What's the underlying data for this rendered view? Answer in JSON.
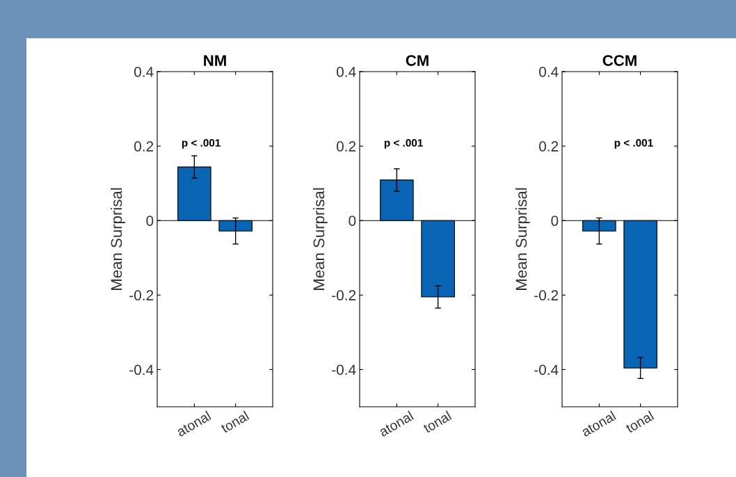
{
  "chart_data": [
    {
      "type": "bar",
      "title": "NM",
      "ylabel": "Mean Surprisal",
      "categories": [
        "atonal",
        "tonal"
      ],
      "values": [
        0.144,
        -0.028
      ],
      "errors": [
        0.03,
        0.035
      ],
      "color": "#0a64b4",
      "ylim": [
        -0.5,
        0.4
      ],
      "yticks": [
        -0.4,
        -0.2,
        0,
        0.2,
        0.4
      ],
      "annotations": [
        "p < .001"
      ],
      "ref_lines": [
        {
          "axis": "y",
          "value": 0,
          "color": "#000000"
        }
      ]
    },
    {
      "type": "bar",
      "title": "CM",
      "ylabel": "Mean Surprisal",
      "categories": [
        "atonal",
        "tonal"
      ],
      "values": [
        0.109,
        -0.205
      ],
      "errors": [
        0.03,
        0.03
      ],
      "color": "#0a64b4",
      "ylim": [
        -0.5,
        0.4
      ],
      "yticks": [
        -0.4,
        -0.2,
        0,
        0.2,
        0.4
      ],
      "annotations": [
        "p < .001"
      ],
      "ref_lines": [
        {
          "axis": "y",
          "value": 0,
          "color": "#000000"
        }
      ]
    },
    {
      "type": "bar",
      "title": "CCM",
      "ylabel": "Mean Surprisal",
      "categories": [
        "atonal",
        "tonal"
      ],
      "values": [
        -0.028,
        -0.396
      ],
      "errors": [
        0.035,
        0.028
      ],
      "color": "#0a64b4",
      "ylim": [
        -0.5,
        0.4
      ],
      "yticks": [
        -0.4,
        -0.2,
        0,
        0.2,
        0.4
      ],
      "annotations": [
        "p < .001"
      ],
      "ref_lines": [
        {
          "axis": "y",
          "value": 0,
          "color": "#000000"
        }
      ]
    }
  ]
}
